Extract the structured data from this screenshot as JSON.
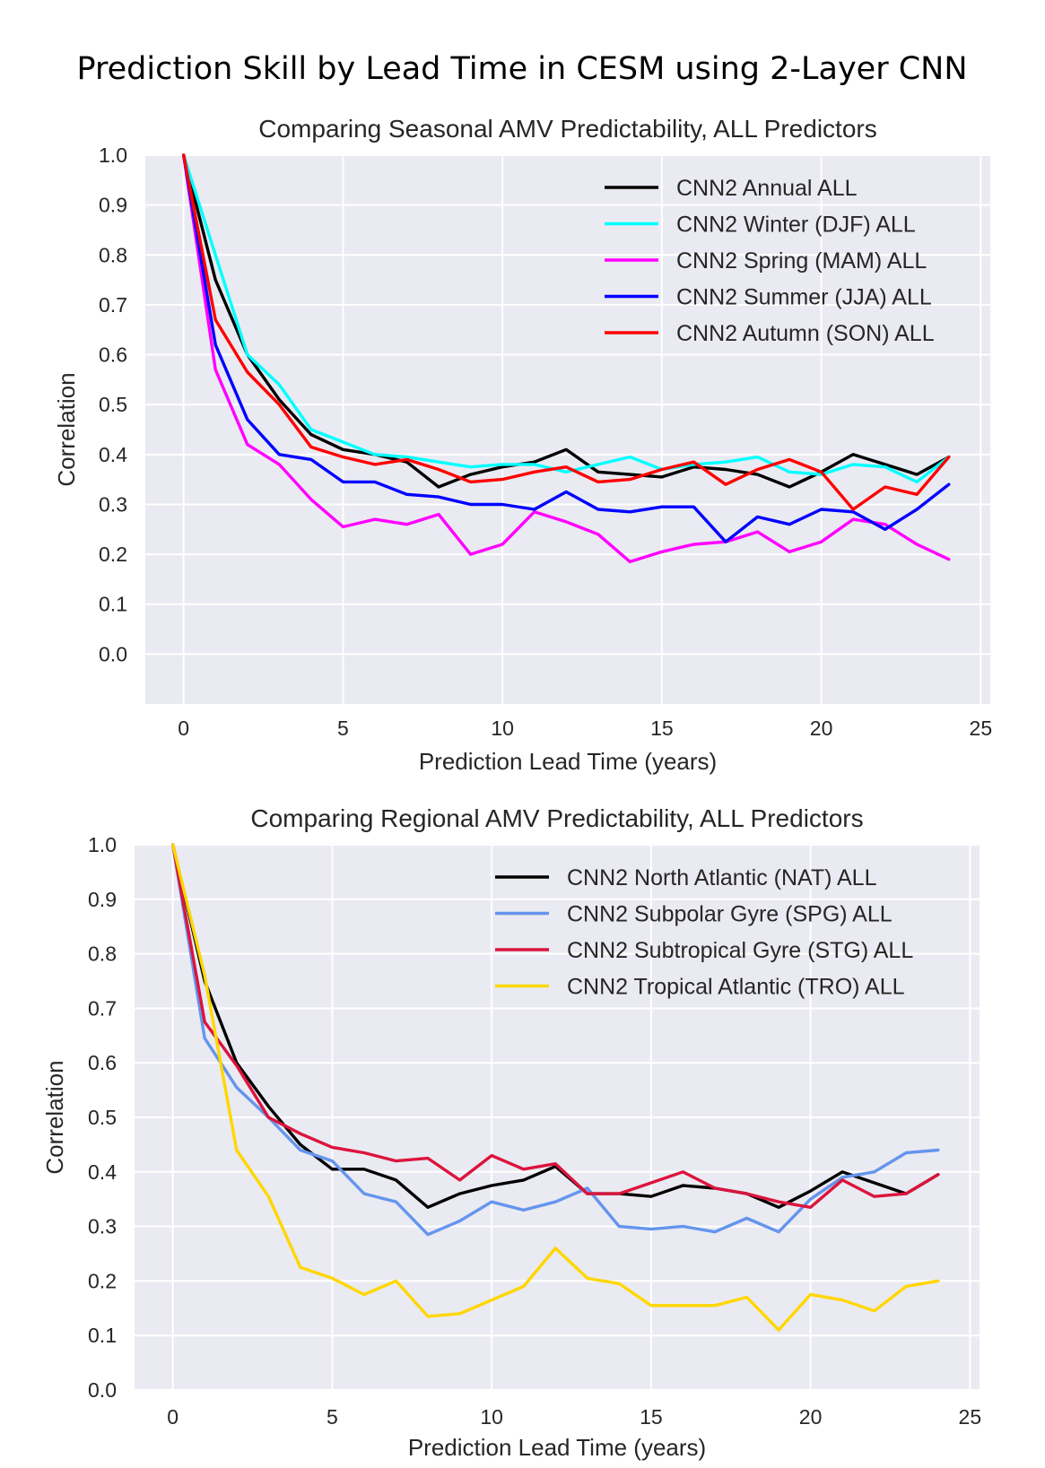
{
  "figure": {
    "title": "Prediction Skill by Lead Time in CESM using 2-Layer CNN"
  },
  "colors": {
    "background": "#ffffff",
    "plot_background": "#eaeaf2",
    "grid": "#ffffff"
  },
  "chart_data": [
    {
      "type": "line",
      "title": "Comparing Seasonal AMV Predictability, ALL Predictors",
      "xlabel": "Prediction Lead Time (years)",
      "ylabel": "Correlation",
      "xlim": [
        -1.2,
        25.3
      ],
      "ylim": [
        -0.1,
        1.0
      ],
      "xticks": [
        0,
        5,
        10,
        15,
        20,
        25
      ],
      "yticks": [
        0.0,
        0.1,
        0.2,
        0.3,
        0.4,
        0.5,
        0.6,
        0.7,
        0.8,
        0.9,
        1.0
      ],
      "xtick_labels": [
        "0",
        "5",
        "10",
        "15",
        "20",
        "25"
      ],
      "ytick_labels": [
        "0.0",
        "0.1",
        "0.2",
        "0.3",
        "0.4",
        "0.5",
        "0.6",
        "0.7",
        "0.8",
        "0.9",
        "1.0"
      ],
      "grid": true,
      "legend_position": "top-right",
      "x": [
        0,
        1,
        2,
        3,
        4,
        5,
        6,
        7,
        8,
        9,
        10,
        11,
        12,
        13,
        14,
        15,
        16,
        17,
        18,
        19,
        20,
        21,
        22,
        23,
        24
      ],
      "series": [
        {
          "name": "CNN2 Annual ALL",
          "color": "#000000",
          "values": [
            1.0,
            0.75,
            0.6,
            0.51,
            0.44,
            0.41,
            0.4,
            0.385,
            0.335,
            0.36,
            0.375,
            0.385,
            0.41,
            0.365,
            0.36,
            0.355,
            0.375,
            0.37,
            0.36,
            0.335,
            0.365,
            0.4,
            0.38,
            0.36,
            0.395
          ]
        },
        {
          "name": "CNN2 Winter (DJF) ALL",
          "color": "#00ffff",
          "values": [
            1.0,
            0.8,
            0.6,
            0.54,
            0.45,
            0.425,
            0.4,
            0.395,
            0.385,
            0.375,
            0.38,
            0.38,
            0.365,
            0.38,
            0.395,
            0.37,
            0.38,
            0.385,
            0.395,
            0.365,
            0.36,
            0.38,
            0.375,
            0.345,
            0.395
          ]
        },
        {
          "name": "CNN2 Spring (MAM) ALL",
          "color": "#ff00ff",
          "values": [
            1.0,
            0.57,
            0.42,
            0.38,
            0.31,
            0.255,
            0.27,
            0.26,
            0.28,
            0.2,
            0.22,
            0.285,
            0.265,
            0.24,
            0.185,
            0.205,
            0.22,
            0.225,
            0.245,
            0.205,
            0.225,
            0.27,
            0.26,
            0.22,
            0.19
          ]
        },
        {
          "name": "CNN2 Summer (JJA) ALL",
          "color": "#0000ff",
          "values": [
            1.0,
            0.62,
            0.47,
            0.4,
            0.39,
            0.345,
            0.345,
            0.32,
            0.315,
            0.3,
            0.3,
            0.29,
            0.325,
            0.29,
            0.285,
            0.295,
            0.295,
            0.225,
            0.275,
            0.26,
            0.29,
            0.285,
            0.25,
            0.29,
            0.34
          ]
        },
        {
          "name": "CNN2 Autumn (SON) ALL",
          "color": "#ff0000",
          "values": [
            1.0,
            0.67,
            0.565,
            0.5,
            0.415,
            0.395,
            0.38,
            0.39,
            0.37,
            0.345,
            0.35,
            0.365,
            0.375,
            0.345,
            0.35,
            0.37,
            0.385,
            0.34,
            0.37,
            0.39,
            0.365,
            0.29,
            0.335,
            0.32,
            0.395
          ]
        }
      ]
    },
    {
      "type": "line",
      "title": "Comparing Regional AMV Predictability, ALL Predictors",
      "xlabel": "Prediction Lead Time (years)",
      "ylabel": "Correlation",
      "xlim": [
        -1.2,
        25.3
      ],
      "ylim": [
        0.0,
        1.0
      ],
      "xticks": [
        0,
        5,
        10,
        15,
        20,
        25
      ],
      "yticks": [
        0.0,
        0.1,
        0.2,
        0.3,
        0.4,
        0.5,
        0.6,
        0.7,
        0.8,
        0.9,
        1.0
      ],
      "xtick_labels": [
        "0",
        "5",
        "10",
        "15",
        "20",
        "25"
      ],
      "ytick_labels": [
        "0.0",
        "0.1",
        "0.2",
        "0.3",
        "0.4",
        "0.5",
        "0.6",
        "0.7",
        "0.8",
        "0.9",
        "1.0"
      ],
      "grid": true,
      "legend_position": "top-right",
      "x": [
        0,
        1,
        2,
        3,
        4,
        5,
        6,
        7,
        8,
        9,
        10,
        11,
        12,
        13,
        14,
        15,
        16,
        17,
        18,
        19,
        20,
        21,
        22,
        23,
        24
      ],
      "series": [
        {
          "name": "CNN2 North Atlantic (NAT) ALL",
          "color": "#000000",
          "values": [
            1.0,
            0.75,
            0.6,
            0.52,
            0.45,
            0.405,
            0.405,
            0.385,
            0.335,
            0.36,
            0.375,
            0.385,
            0.41,
            0.36,
            0.36,
            0.355,
            0.375,
            0.37,
            0.36,
            0.335,
            0.365,
            0.4,
            0.38,
            0.36,
            0.395
          ]
        },
        {
          "name": "CNN2 Subpolar Gyre (SPG) ALL",
          "color": "#6495ed",
          "values": [
            1.0,
            0.645,
            0.555,
            0.5,
            0.44,
            0.42,
            0.36,
            0.345,
            0.285,
            0.31,
            0.345,
            0.33,
            0.345,
            0.37,
            0.3,
            0.295,
            0.3,
            0.29,
            0.315,
            0.29,
            0.35,
            0.39,
            0.4,
            0.435,
            0.44
          ]
        },
        {
          "name": "CNN2 Subtropical Gyre (STG) ALL",
          "color": "#dc143c",
          "values": [
            1.0,
            0.675,
            0.595,
            0.5,
            0.47,
            0.445,
            0.435,
            0.42,
            0.425,
            0.385,
            0.43,
            0.405,
            0.415,
            0.36,
            0.36,
            0.38,
            0.4,
            0.37,
            0.36,
            0.345,
            0.335,
            0.385,
            0.355,
            0.36,
            0.395
          ]
        },
        {
          "name": "CNN2 Tropical Atlantic (TRO) ALL",
          "color": "#ffd700",
          "values": [
            1.0,
            0.76,
            0.44,
            0.355,
            0.225,
            0.205,
            0.175,
            0.2,
            0.135,
            0.14,
            0.165,
            0.19,
            0.26,
            0.205,
            0.195,
            0.155,
            0.155,
            0.155,
            0.17,
            0.11,
            0.175,
            0.165,
            0.145,
            0.19,
            0.2
          ]
        }
      ]
    }
  ]
}
